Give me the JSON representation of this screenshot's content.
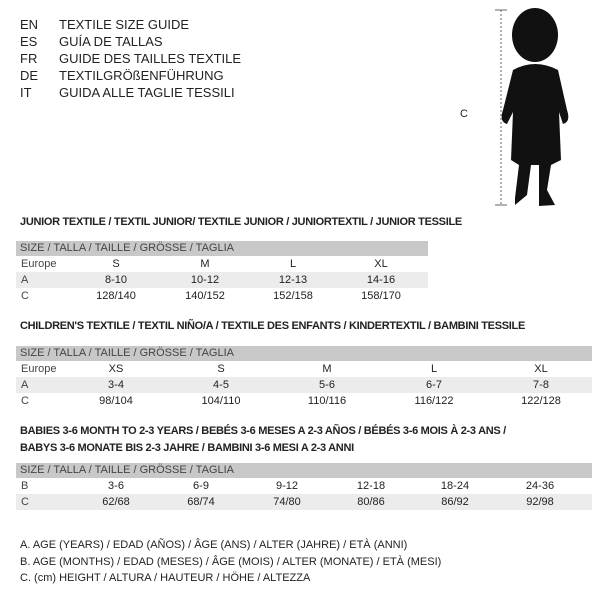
{
  "header": {
    "lines": [
      {
        "code": "EN",
        "text": "TEXTILE SIZE GUIDE"
      },
      {
        "code": "ES",
        "text": "GUÍA DE TALLAS"
      },
      {
        "code": "FR",
        "text": "GUIDE DES TAILLES TEXTILE"
      },
      {
        "code": "DE",
        "text": "TEXTILGRÖßENFÜHRUNG"
      },
      {
        "code": "IT",
        "text": "GUIDA ALLE TAGLIE TESSILI"
      }
    ]
  },
  "figure": {
    "label": "C"
  },
  "junior": {
    "title": "JUNIOR TEXTILE / TEXTIL JUNIOR/ TEXTILE JUNIOR / JUNIORTEXTIL / JUNIOR TESSILE",
    "header": "SIZE / TALLA / TAILLE / GRÖSSE / TAGLIA",
    "rows": [
      {
        "label": "Europe",
        "values": [
          "S",
          "M",
          "L",
          "XL"
        ]
      },
      {
        "label": "A",
        "values": [
          "8-10",
          "10-12",
          "12-13",
          "14-16"
        ]
      },
      {
        "label": "C",
        "values": [
          "128/140",
          "140/152",
          "152/158",
          "158/170"
        ]
      }
    ]
  },
  "children": {
    "title": "CHILDREN'S TEXTILE / TEXTIL NIÑO/A / TEXTILE DES ENFANTS / KINDERTEXTIL / BAMBINI TESSILE",
    "header": "SIZE / TALLA / TAILLE / GRÖSSE / TAGLIA",
    "rows": [
      {
        "label": "Europe",
        "values": [
          "XS",
          "S",
          "M",
          "L",
          "XL"
        ]
      },
      {
        "label": "A",
        "values": [
          "3-4",
          "4-5",
          "5-6",
          "6-7",
          "7-8"
        ]
      },
      {
        "label": "C",
        "values": [
          "98/104",
          "104/110",
          "110/116",
          "116/122",
          "122/128"
        ]
      }
    ]
  },
  "babies": {
    "title1": "BABIES 3-6 MONTH TO 2-3 YEARS / BEBÉS 3-6 MESES A 2-3 AÑOS / BÉBÉS 3-6 MOIS À 2-3 ANS /",
    "title2": "BABYS 3-6 MONATE BIS 2-3 JAHRE / BAMBINI 3-6 MESI A 2-3 ANNI",
    "header": "SIZE / TALLA / TAILLE / GRÖSSE / TAGLIA",
    "rows": [
      {
        "label": "B",
        "values": [
          "3-6",
          "6-9",
          "9-12",
          "12-18",
          "18-24",
          "24-36"
        ]
      },
      {
        "label": "C",
        "values": [
          "62/68",
          "68/74",
          "74/80",
          "80/86",
          "86/92",
          "92/98"
        ]
      }
    ]
  },
  "legend": [
    "A. AGE (YEARS) / EDAD (AÑOS) / ÂGE (ANS) / ALTER (JAHRE) / ETÀ (ANNI)",
    "B. AGE (MONTHS) / EDAD (MESES) / ÂGE (MOIS) / ALTER (MONATE) / ETÀ (MESI)",
    "C. (cm) HEIGHT / ALTURA / HAUTEUR / HÖHE / ALTEZZA"
  ]
}
